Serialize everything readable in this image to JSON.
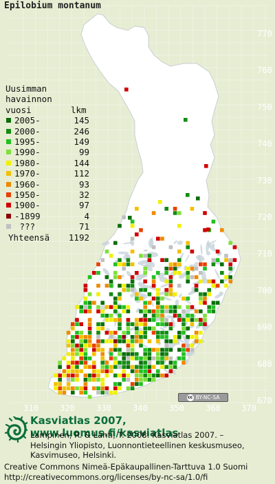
{
  "map": {
    "species": "Epilobium montanum",
    "x_ticks": [
      "310",
      "320",
      "330",
      "340",
      "350",
      "360",
      "370"
    ],
    "y_ticks": [
      "770",
      "760",
      "750",
      "740",
      "730",
      "720",
      "710",
      "700",
      "690",
      "680",
      "670"
    ],
    "colors": {
      "background": "#e6edd2",
      "land": "#ffffff",
      "lakes": "#c7d3d9",
      "borders": "#b0b7be"
    }
  },
  "legend": {
    "header_line1": "Uusimman",
    "header_line2": "havainnon",
    "header_line3": "vuosi",
    "count_header": "lkm",
    "rows": [
      {
        "label": "2005-",
        "count": "145",
        "color": "#0b6e0b"
      },
      {
        "label": "2000-",
        "count": "246",
        "color": "#138c13"
      },
      {
        "label": "1995-",
        "count": "149",
        "color": "#22c022"
      },
      {
        "label": "1990-",
        "count": "99",
        "color": "#7ee03a"
      },
      {
        "label": "1980-",
        "count": "144",
        "color": "#f0f000"
      },
      {
        "label": "1970-",
        "count": "112",
        "color": "#f2c000"
      },
      {
        "label": "1960-",
        "count": "93",
        "color": "#ef8a00"
      },
      {
        "label": "1950-",
        "count": "32",
        "color": "#e84000"
      },
      {
        "label": "1900-",
        "count": "97",
        "color": "#d00000"
      },
      {
        "label": "-1899",
        "count": "4",
        "color": "#8b0000"
      },
      {
        "label": " ???",
        "count": "71",
        "color": "#c0c0c0"
      }
    ],
    "total_label": "Yhteensä",
    "total_count": "1192"
  },
  "cc_badge": {
    "cc": "cc",
    "text": "BY-NC-SA"
  },
  "footer": {
    "title": "Kasviatlas 2007, www.luomus.fi/kasviatlas",
    "cite_line1": "Lampinen, R. & Lahti, T. 2008: Kasviatlas 2007. –",
    "cite_line2": "Helsingin Yliopisto, Luonnontieteellinen keskusmuseo,",
    "cite_line3": "Kasvimuseo, Helsinki.",
    "license_line1": "Creative Commons Nimeä-Epäkaupallinen-Tarttuva 1.0 Suomi",
    "license_line2": "http://creativecommons.org/licenses/by-nc-sa/1.0/fi"
  }
}
